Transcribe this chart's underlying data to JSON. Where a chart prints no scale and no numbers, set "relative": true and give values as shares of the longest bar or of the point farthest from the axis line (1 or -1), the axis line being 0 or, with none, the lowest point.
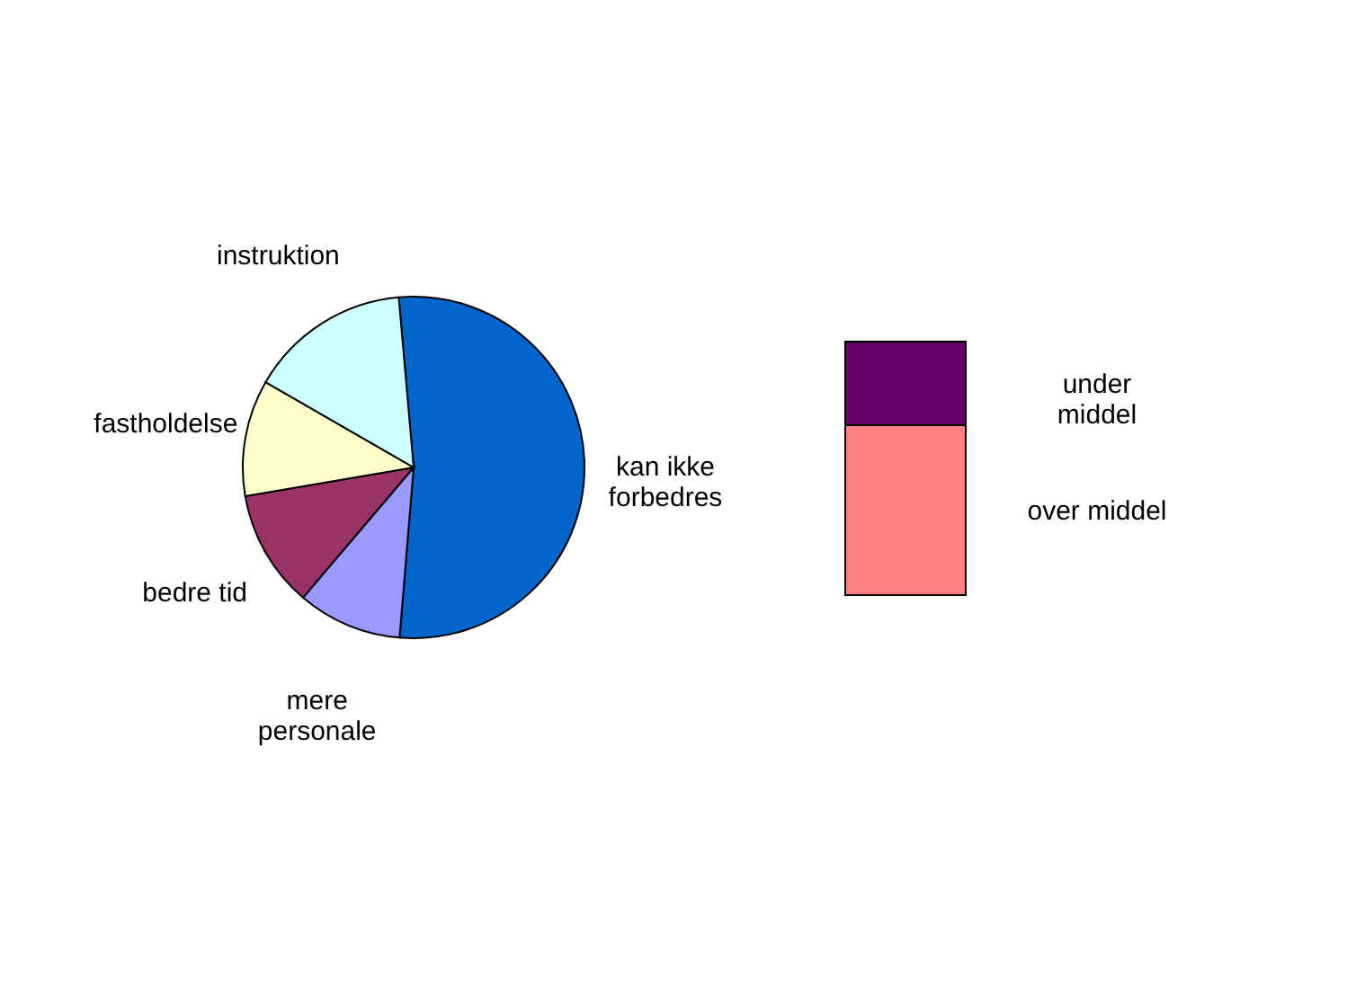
{
  "chart_data": [
    {
      "type": "pie",
      "categories": [
        "kan ikke\nforbedres",
        "mere\npersonale",
        "bedre tid",
        "fastholdelse",
        "instruktion"
      ],
      "values": [
        52.7,
        9.9,
        11.1,
        11,
        15.3
      ],
      "colors": [
        "#0066cc",
        "#9999ff",
        "#993366",
        "#ffffcc",
        "#ccffff"
      ]
    },
    {
      "type": "bar",
      "stacked": true,
      "relative": true,
      "categories": [
        null
      ],
      "series": [
        {
          "name": "over middel",
          "color": "#ff8080",
          "values": [
            0.67
          ]
        },
        {
          "name": "under\nmiddel",
          "color": "#660066",
          "values": [
            0.33
          ]
        }
      ]
    }
  ]
}
